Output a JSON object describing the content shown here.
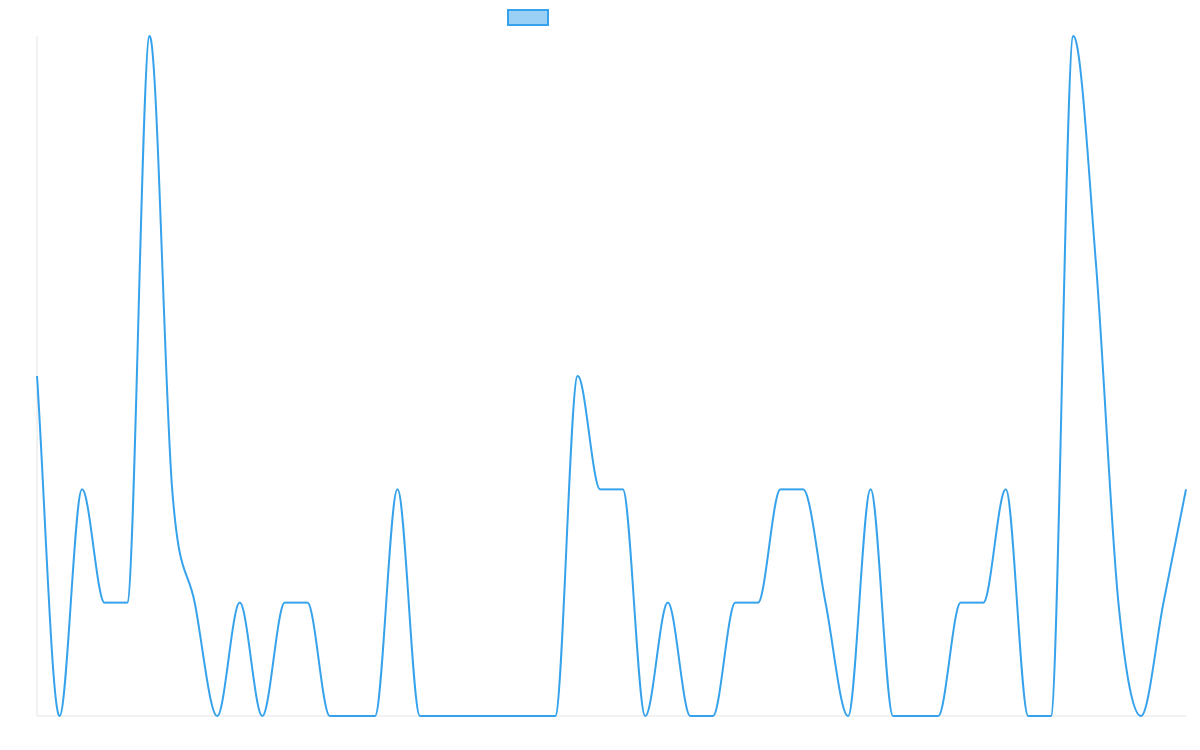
{
  "chart_data": {
    "type": "line",
    "title": "",
    "xlabel": "",
    "ylabel": "",
    "grid": false,
    "legend": "top-center",
    "ylim": [
      0,
      6
    ],
    "x": [
      0,
      1,
      2,
      3,
      4,
      5,
      6,
      7,
      8,
      9,
      10,
      11,
      12,
      13,
      14,
      15,
      16,
      17,
      18,
      19,
      20,
      21,
      22,
      23,
      24,
      25,
      26,
      27,
      28,
      29,
      30,
      31,
      32,
      33,
      34,
      35,
      36,
      37,
      38,
      39,
      40,
      41,
      42,
      43,
      44,
      45,
      46,
      47,
      48,
      49,
      50,
      51
    ],
    "series": [
      {
        "name": "",
        "color": "#36a2eb",
        "fill": "#9ad0f5",
        "values": [
          3,
          0,
          2,
          1,
          1,
          6,
          2,
          1,
          0,
          1,
          0,
          1,
          1,
          0,
          0,
          0,
          2,
          0,
          0,
          0,
          0,
          0,
          0,
          0,
          3,
          2,
          2,
          0,
          1,
          0,
          0,
          1,
          1,
          2,
          2,
          1,
          0,
          2,
          0,
          0,
          0,
          1,
          1,
          2,
          0,
          0,
          6,
          4,
          1,
          0,
          1,
          2
        ]
      }
    ]
  }
}
